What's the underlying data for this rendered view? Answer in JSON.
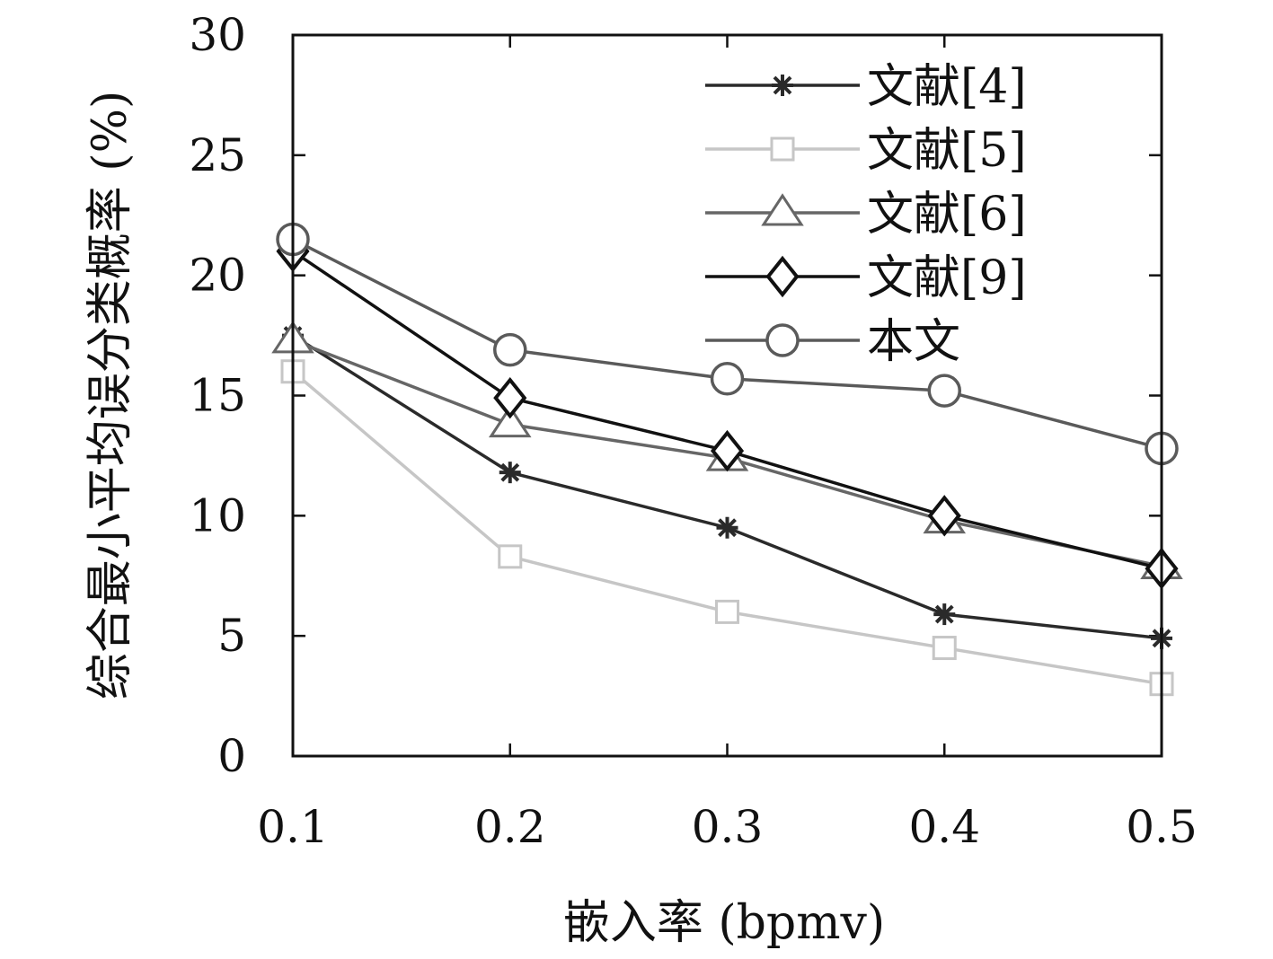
{
  "chart_data": {
    "type": "line",
    "title": "",
    "xlabel": "嵌入率 (bpmv)",
    "ylabel": "综合最小平均误分类概率 (%)",
    "x": [
      0.1,
      0.2,
      0.3,
      0.4,
      0.5
    ],
    "x_tick_labels": [
      "0.1",
      "0.2",
      "0.3",
      "0.4",
      "0.5"
    ],
    "y_tick_labels": [
      "0",
      "5",
      "10",
      "15",
      "20",
      "25",
      "30"
    ],
    "xlim": [
      0.1,
      0.5
    ],
    "ylim": [
      0,
      30
    ],
    "grid": false,
    "legend_position": "top-right",
    "series": [
      {
        "name": "文献[4]",
        "values": [
          17.5,
          11.8,
          9.5,
          5.9,
          4.9
        ],
        "color": "#2a2a2a",
        "marker": "asterisk"
      },
      {
        "name": "文献[5]",
        "values": [
          16.0,
          8.3,
          6.0,
          4.5,
          3.0
        ],
        "color": "#c6c6c6",
        "marker": "square"
      },
      {
        "name": "文献[6]",
        "values": [
          17.3,
          13.8,
          12.4,
          9.8,
          7.9
        ],
        "color": "#666666",
        "marker": "triangle"
      },
      {
        "name": "文献[9]",
        "values": [
          21.0,
          14.9,
          12.7,
          10.0,
          7.8
        ],
        "color": "#111111",
        "marker": "diamond"
      },
      {
        "name": "本文",
        "values": [
          21.5,
          16.9,
          15.7,
          15.2,
          12.8
        ],
        "color": "#5a5a5a",
        "marker": "circle"
      }
    ]
  }
}
